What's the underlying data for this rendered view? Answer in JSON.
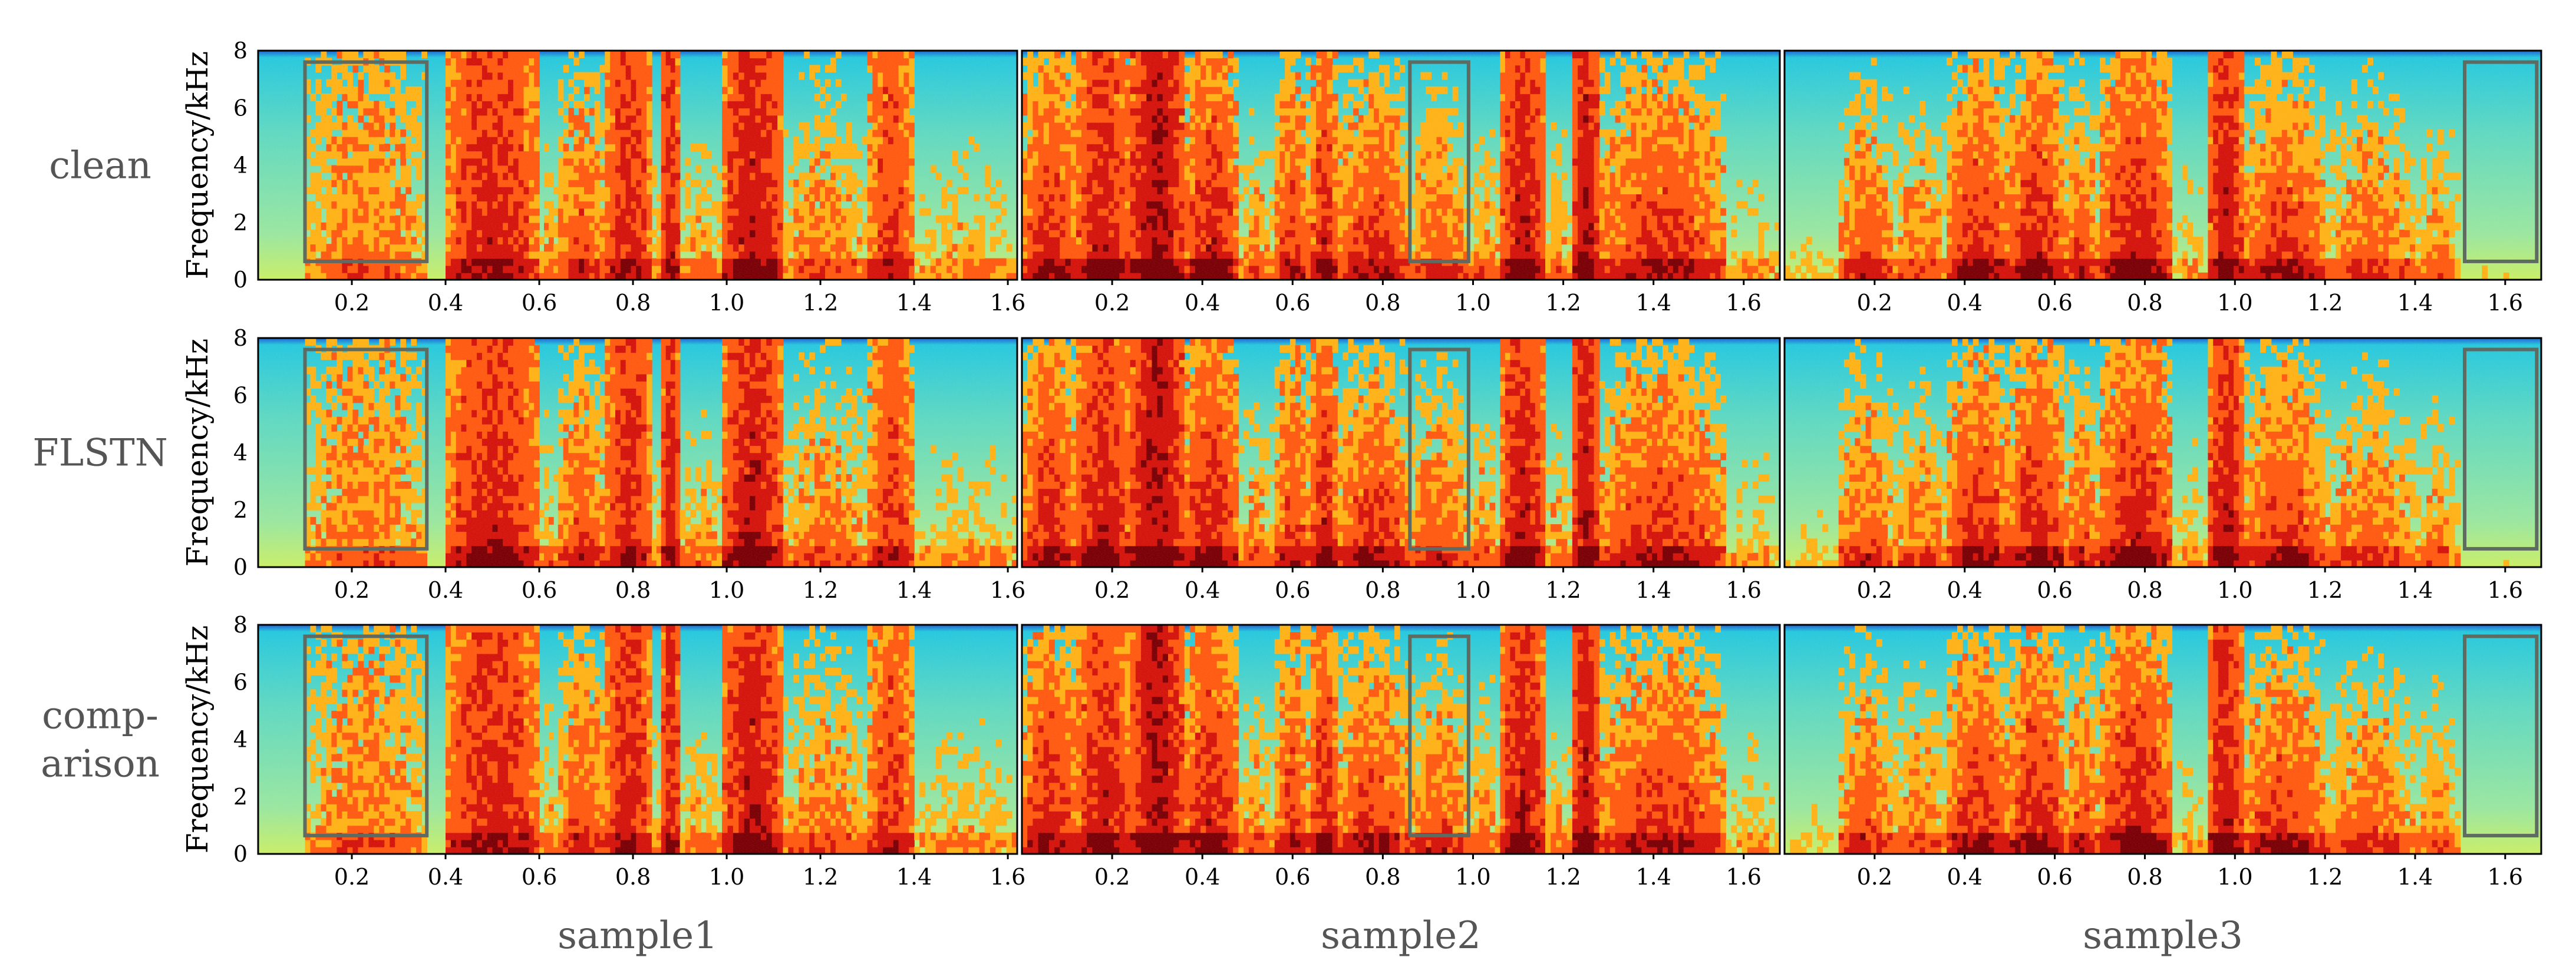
{
  "chart_data": {
    "type": "heatmap",
    "description_kind": "spectrogram grid",
    "rows": [
      {
        "label_lines": [
          "clean"
        ]
      },
      {
        "label_lines": [
          "FLSTN"
        ]
      },
      {
        "label_lines": [
          "comp-",
          "arison"
        ]
      }
    ],
    "columns": [
      {
        "label": "sample1",
        "xlim": [
          0.0,
          1.62
        ],
        "xticks": [
          "0.2",
          "0.4",
          "0.6",
          "0.8",
          "1.0",
          "1.2",
          "1.4",
          "1.6"
        ],
        "box": [
          0.1,
          0.36
        ]
      },
      {
        "label": "sample2",
        "xlim": [
          0.0,
          1.68
        ],
        "xticks": [
          "0.2",
          "0.4",
          "0.6",
          "0.8",
          "1.0",
          "1.2",
          "1.4",
          "1.6"
        ],
        "box": [
          0.86,
          0.99
        ]
      },
      {
        "label": "sample3",
        "xlim": [
          0.0,
          1.68
        ],
        "xticks": [
          "0.2",
          "0.4",
          "0.6",
          "0.8",
          "1.0",
          "1.2",
          "1.4",
          "1.6"
        ],
        "box": [
          1.51,
          1.67
        ]
      }
    ],
    "ylabel": "Frequency/kHz",
    "ylim": [
      0,
      8
    ],
    "yticks": [
      "0",
      "2",
      "4",
      "6",
      "8"
    ],
    "colormap": [
      "#1f5fd6",
      "#27c8e0",
      "#7ee3b0",
      "#f2f23a",
      "#ffb21a",
      "#ff5a14",
      "#d4140f",
      "#7a0008"
    ],
    "box_color": "#5f6a60",
    "sample_energy": [
      [
        [
          0.1,
          0.36,
          0.55,
          0.78
        ],
        [
          0.4,
          0.6,
          0.85,
          0.85
        ],
        [
          0.6,
          0.64,
          0.5,
          0.15
        ],
        [
          0.64,
          0.74,
          0.7,
          0.45
        ],
        [
          0.74,
          0.84,
          0.8,
          0.95
        ],
        [
          0.84,
          0.86,
          0.45,
          0.2
        ],
        [
          0.86,
          0.9,
          0.85,
          0.95
        ],
        [
          0.9,
          0.99,
          0.5,
          0.1
        ],
        [
          0.99,
          1.12,
          0.9,
          0.9
        ],
        [
          1.12,
          1.3,
          0.6,
          0.35
        ],
        [
          1.3,
          1.4,
          0.75,
          0.8
        ],
        [
          1.4,
          1.62,
          0.45,
          0.15
        ]
      ],
      [
        [
          0.0,
          0.12,
          0.85,
          0.5
        ],
        [
          0.12,
          0.24,
          0.9,
          0.75
        ],
        [
          0.24,
          0.36,
          0.95,
          0.98
        ],
        [
          0.36,
          0.48,
          0.88,
          0.55
        ],
        [
          0.48,
          0.56,
          0.55,
          0.2
        ],
        [
          0.56,
          0.64,
          0.75,
          0.5
        ],
        [
          0.64,
          0.7,
          0.88,
          0.6
        ],
        [
          0.7,
          0.86,
          0.8,
          0.35
        ],
        [
          0.86,
          0.99,
          0.7,
          0.25
        ],
        [
          0.99,
          1.06,
          0.55,
          0.2
        ],
        [
          1.06,
          1.16,
          0.9,
          0.85
        ],
        [
          1.16,
          1.22,
          0.5,
          0.15
        ],
        [
          1.22,
          1.28,
          0.9,
          0.95
        ],
        [
          1.28,
          1.56,
          0.8,
          0.4
        ],
        [
          1.56,
          1.68,
          0.4,
          0.1
        ]
      ],
      [
        [
          0.0,
          0.12,
          0.3,
          0.1
        ],
        [
          0.12,
          0.24,
          0.7,
          0.3
        ],
        [
          0.24,
          0.36,
          0.6,
          0.25
        ],
        [
          0.36,
          0.5,
          0.85,
          0.4
        ],
        [
          0.5,
          0.62,
          0.88,
          0.45
        ],
        [
          0.62,
          0.7,
          0.7,
          0.3
        ],
        [
          0.7,
          0.86,
          0.9,
          0.5
        ],
        [
          0.86,
          0.94,
          0.4,
          0.12
        ],
        [
          0.94,
          1.02,
          0.9,
          0.85
        ],
        [
          1.02,
          1.2,
          0.8,
          0.35
        ],
        [
          1.2,
          1.4,
          0.65,
          0.25
        ],
        [
          1.4,
          1.5,
          0.55,
          0.15
        ],
        [
          1.5,
          1.68,
          0.2,
          0.05
        ]
      ]
    ]
  }
}
